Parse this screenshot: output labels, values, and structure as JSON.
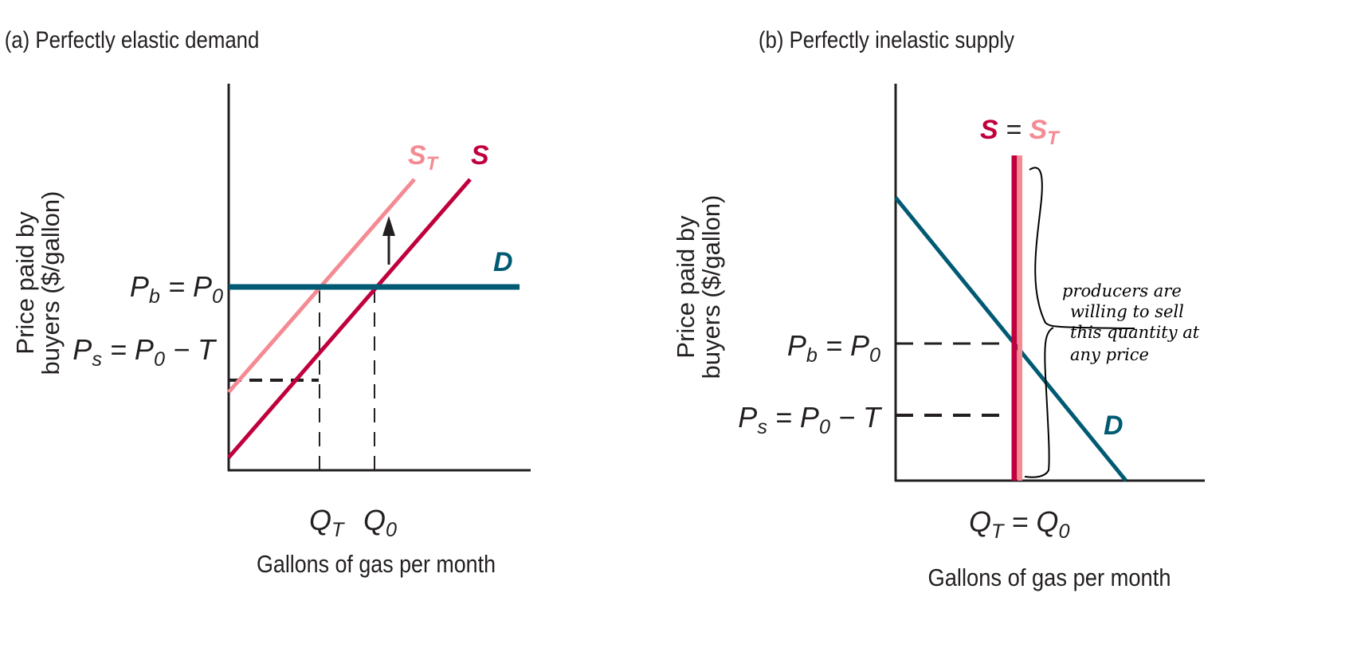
{
  "colors": {
    "supply": "#c0003c",
    "supply_tax": "#f58a93",
    "demand": "#005a73",
    "axis": "#231f20"
  },
  "panel_a": {
    "title": "(a) Perfectly elastic demand",
    "ylabel_line1": "Price paid by",
    "ylabel_line2": "buyers ($/gallon)",
    "xlabel": "Gallons of gas per month",
    "labels": {
      "st": [
        {
          "t": "S"
        },
        {
          "t": "T",
          "sub": true
        }
      ],
      "s": [
        {
          "t": "S"
        }
      ],
      "d": [
        {
          "t": "D"
        }
      ],
      "pb": [
        {
          "t": "P"
        },
        {
          "t": "b",
          "sub": true
        },
        {
          "t": " = P"
        },
        {
          "t": "0",
          "sub": true
        }
      ],
      "ps": [
        {
          "t": "P"
        },
        {
          "t": "s",
          "sub": true
        },
        {
          "t": " = P"
        },
        {
          "t": "0",
          "sub": true
        },
        {
          "t": " − T"
        }
      ],
      "qt": [
        {
          "t": "Q"
        },
        {
          "t": "T",
          "sub": true
        }
      ],
      "q0": [
        {
          "t": "Q"
        },
        {
          "t": "0",
          "sub": true
        }
      ]
    }
  },
  "panel_b": {
    "title": "(b) Perfectly inelastic supply",
    "ylabel_line1": "Price paid by",
    "ylabel_line2": "buyers ($/gallon)",
    "xlabel": "Gallons of gas per month",
    "labels": {
      "s_eq": [
        {
          "t": "S",
          "cls": "s"
        },
        {
          "t": " = ",
          "cls": "eq"
        },
        {
          "t": "S",
          "cls": "st"
        },
        {
          "t": "T",
          "sub": true,
          "cls": "st"
        }
      ],
      "d": [
        {
          "t": "D"
        }
      ],
      "pb": [
        {
          "t": "P"
        },
        {
          "t": "b",
          "sub": true
        },
        {
          "t": " = P"
        },
        {
          "t": "0",
          "sub": true
        }
      ],
      "ps": [
        {
          "t": "P"
        },
        {
          "t": "s",
          "sub": true
        },
        {
          "t": " = P"
        },
        {
          "t": "0",
          "sub": true
        },
        {
          "t": " − T"
        }
      ],
      "q": [
        {
          "t": "Q"
        },
        {
          "t": "T",
          "sub": true
        },
        {
          "t": " = Q"
        },
        {
          "t": "0",
          "sub": true
        }
      ]
    },
    "annotation": [
      "producers are",
      "willing to sell",
      "this quantity at",
      "any price"
    ]
  }
}
